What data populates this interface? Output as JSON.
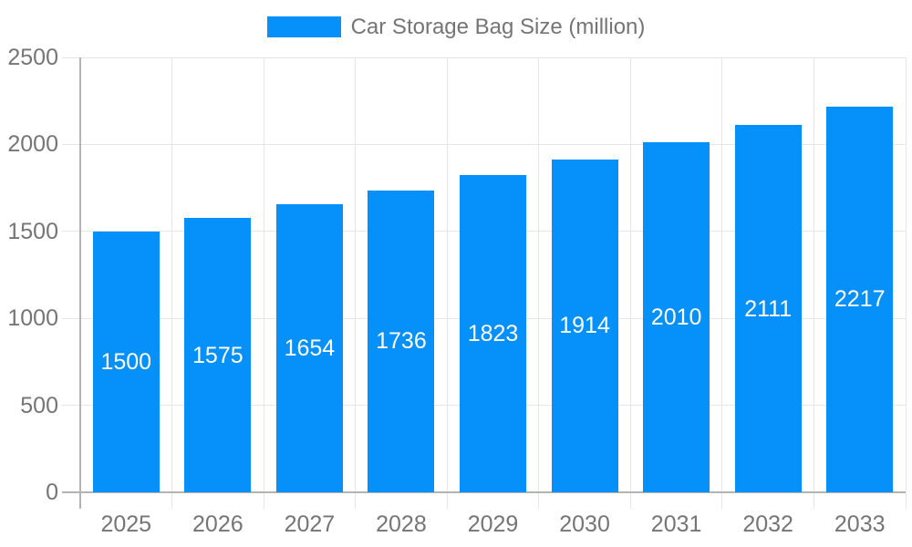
{
  "chart_data": {
    "type": "bar",
    "title": "Car Storage Bag Size (million)",
    "categories": [
      "2025",
      "2026",
      "2027",
      "2028",
      "2029",
      "2030",
      "2031",
      "2032",
      "2033"
    ],
    "values": [
      1500,
      1575,
      1654,
      1736,
      1823,
      1914,
      2010,
      2111,
      2217
    ],
    "series_name": "Car Storage Bag Size (million)",
    "xlabel": "",
    "ylabel": "",
    "ylim": [
      0,
      2500
    ],
    "y_ticks": [
      0,
      500,
      1000,
      1500,
      2000,
      2500
    ],
    "grid": true,
    "legend_position": "top-center",
    "value_labels": "inside-middle",
    "colors": {
      "bar": "#0690fa",
      "axis_line": "#b3b3b3",
      "grid_line": "#e6e6e6",
      "tick_label": "#757575",
      "legend_text": "#757575",
      "value_label": "#ffffff",
      "background": "#ffffff"
    }
  }
}
